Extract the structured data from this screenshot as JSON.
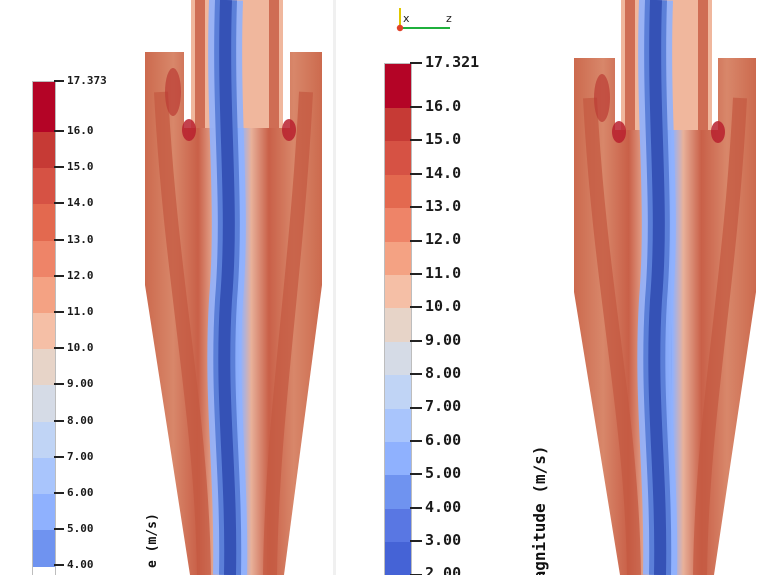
{
  "left_view": {
    "unit_title_fragment": "e (m/s)",
    "colormap": {
      "bands": [
        "#b40426",
        "#c63a35",
        "#d65244",
        "#e3694f",
        "#ee8468",
        "#f4a283",
        "#f5bfa6",
        "#e7d4c8",
        "#d5dbe6",
        "#c0d4f5",
        "#a9c5fc",
        "#8fb1fe",
        "#6f93f0"
      ],
      "ticks": [
        {
          "value": 17.373,
          "label": "17.373"
        },
        {
          "value": 16.0,
          "label": "16.0"
        },
        {
          "value": 15.0,
          "label": "15.0"
        },
        {
          "value": 14.0,
          "label": "14.0"
        },
        {
          "value": 13.0,
          "label": "13.0"
        },
        {
          "value": 12.0,
          "label": "12.0"
        },
        {
          "value": 11.0,
          "label": "11.0"
        },
        {
          "value": 10.0,
          "label": "10.0"
        },
        {
          "value": 9.0,
          "label": "9.00"
        },
        {
          "value": 8.0,
          "label": "8.00"
        },
        {
          "value": 7.0,
          "label": "7.00"
        },
        {
          "value": 6.0,
          "label": "6.00"
        },
        {
          "value": 5.0,
          "label": "5.00"
        },
        {
          "value": 4.0,
          "label": "4.00"
        }
      ]
    }
  },
  "right_view": {
    "unit_title_fragment": "Magnitude (m/s)",
    "axes_labels": {
      "x": "x",
      "z": "z"
    },
    "colormap": {
      "bands": [
        "#b40426",
        "#c63a35",
        "#d65244",
        "#e3694f",
        "#ee8468",
        "#f4a283",
        "#f5bfa6",
        "#e7d4c8",
        "#d5dbe6",
        "#c0d4f5",
        "#a9c5fc",
        "#8fb1fe",
        "#6f93f0",
        "#5977e3",
        "#4563d6"
      ],
      "ticks": [
        {
          "value": 17.321,
          "label": "17.321"
        },
        {
          "value": 16.0,
          "label": "16.0"
        },
        {
          "value": 15.0,
          "label": "15.0"
        },
        {
          "value": 14.0,
          "label": "14.0"
        },
        {
          "value": 13.0,
          "label": "13.0"
        },
        {
          "value": 12.0,
          "label": "12.0"
        },
        {
          "value": 11.0,
          "label": "11.0"
        },
        {
          "value": 10.0,
          "label": "10.0"
        },
        {
          "value": 9.0,
          "label": "9.00"
        },
        {
          "value": 8.0,
          "label": "8.00"
        },
        {
          "value": 7.0,
          "label": "7.00"
        },
        {
          "value": 6.0,
          "label": "6.00"
        },
        {
          "value": 5.0,
          "label": "5.00"
        },
        {
          "value": 4.0,
          "label": "4.00"
        },
        {
          "value": 3.0,
          "label": "3.00"
        },
        {
          "value": 2.0,
          "label": "2.00"
        }
      ]
    }
  },
  "colors": {
    "wall_red": "#cc6a4e",
    "high_red": "#b8202e",
    "core_blue": "#3552b6",
    "light_blue": "#8fb1fe",
    "peach": "#f0b79d",
    "background": "#ffffff"
  }
}
